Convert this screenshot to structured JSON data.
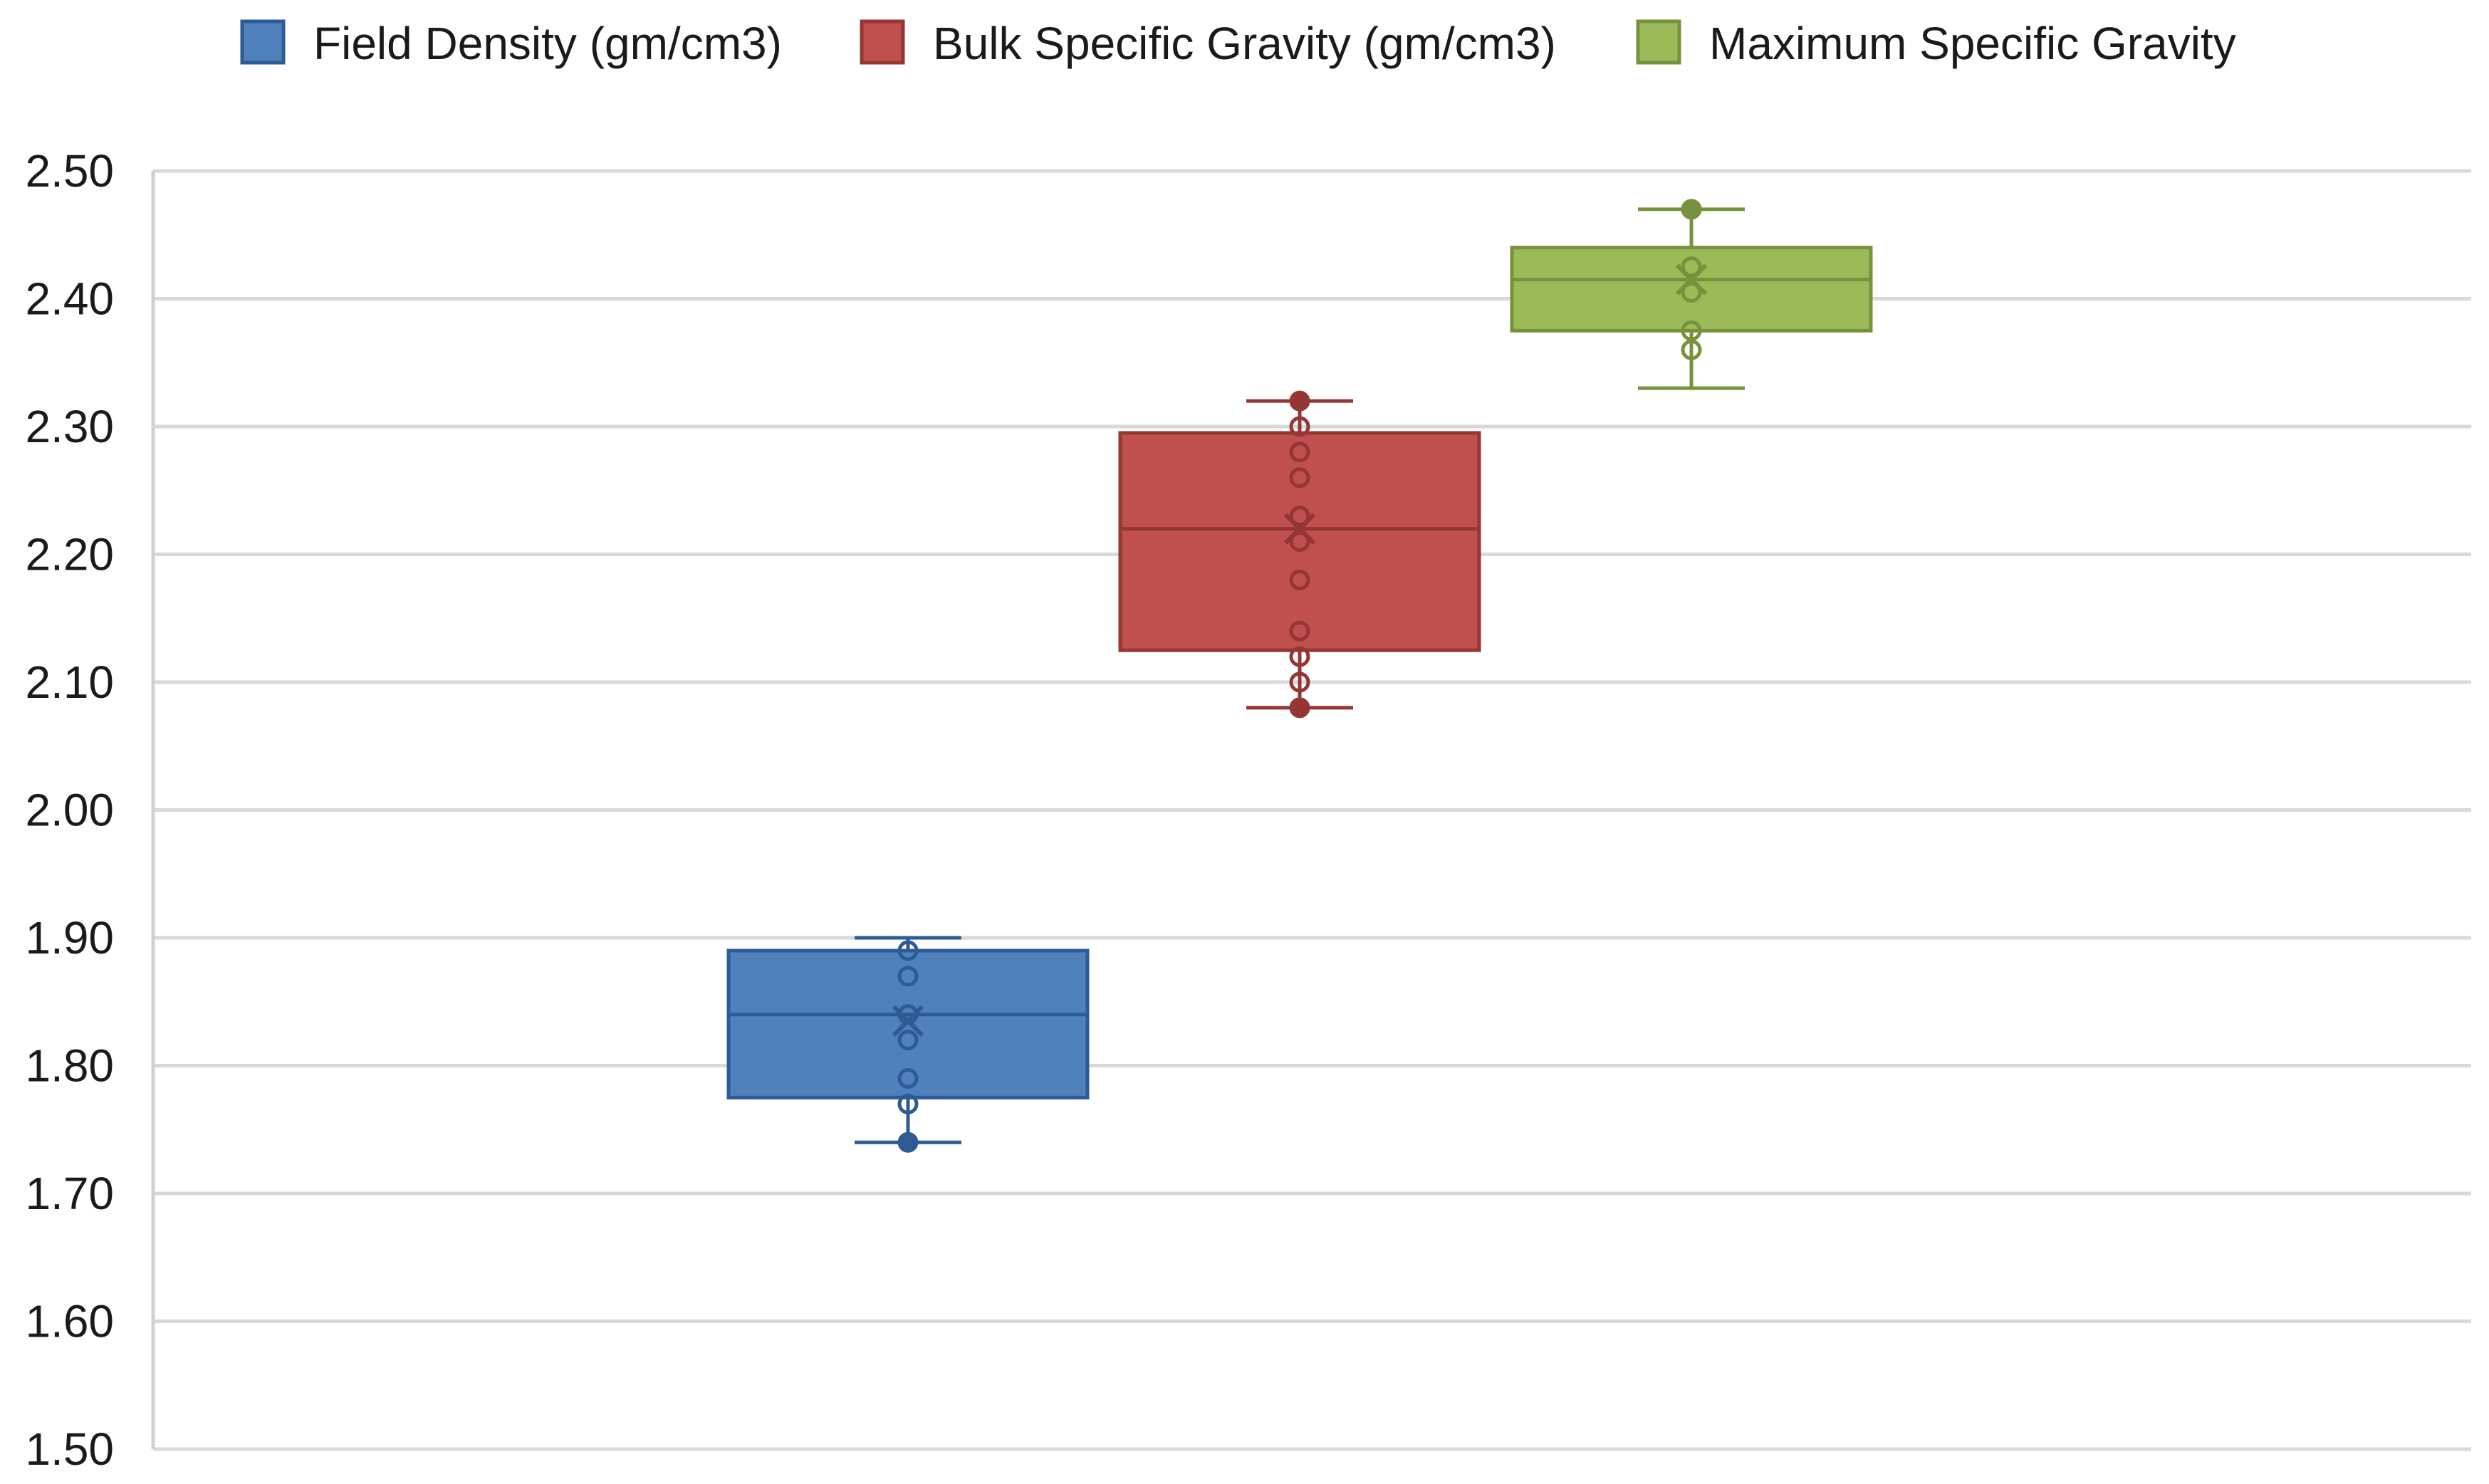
{
  "chart_data": {
    "type": "box",
    "title": "",
    "xlabel": "",
    "ylabel": "",
    "ylim": [
      1.5,
      2.5
    ],
    "yticks": [
      "1.50",
      "1.60",
      "1.70",
      "1.80",
      "1.90",
      "2.00",
      "2.10",
      "2.20",
      "2.30",
      "2.40",
      "2.50"
    ],
    "grid": true,
    "legend_position": "top",
    "series": [
      {
        "name": "Field Density (gm/cm3)",
        "color": "#4F81BD",
        "stroke": "#2E5B94",
        "min": 1.74,
        "q1": 1.775,
        "median": 1.84,
        "q3": 1.89,
        "max": 1.9,
        "mean": 1.835,
        "points": [
          1.74,
          1.77,
          1.79,
          1.82,
          1.84,
          1.87,
          1.89
        ]
      },
      {
        "name": "Bulk Specific Gravity (gm/cm3)",
        "color": "#C0504D",
        "stroke": "#943634",
        "min": 2.08,
        "q1": 2.125,
        "median": 2.22,
        "q3": 2.295,
        "max": 2.32,
        "mean": 2.22,
        "points": [
          2.08,
          2.1,
          2.12,
          2.14,
          2.18,
          2.21,
          2.23,
          2.26,
          2.28,
          2.3,
          2.32
        ]
      },
      {
        "name": "Maximum Specific Gravity",
        "color": "#9BBB59",
        "stroke": "#76923C",
        "min": 2.33,
        "q1": 2.375,
        "median": 2.415,
        "q3": 2.44,
        "max": 2.47,
        "mean": 2.415,
        "points": [
          2.36,
          2.375,
          2.405,
          2.425,
          2.47
        ]
      }
    ]
  }
}
